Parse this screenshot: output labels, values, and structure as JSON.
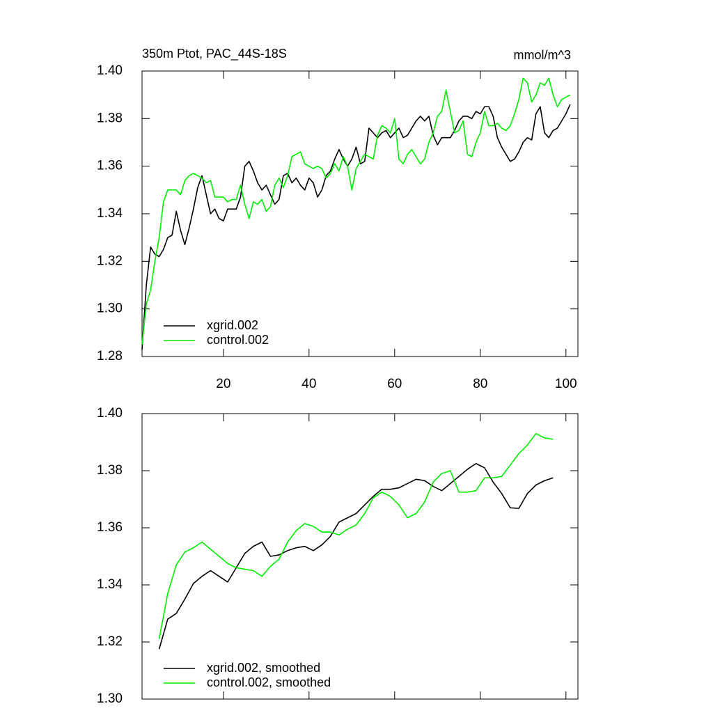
{
  "chart_data": [
    {
      "type": "line",
      "title": "350m Ptot, PAC_44S-18S",
      "units": "mmol/m^3",
      "x": [
        1,
        2,
        3,
        4,
        5,
        6,
        7,
        8,
        9,
        10,
        11,
        12,
        13,
        14,
        15,
        16,
        17,
        18,
        19,
        20,
        21,
        22,
        23,
        24,
        25,
        26,
        27,
        28,
        29,
        30,
        31,
        32,
        33,
        34,
        35,
        36,
        37,
        38,
        39,
        40,
        41,
        42,
        43,
        44,
        45,
        46,
        47,
        48,
        49,
        50,
        51,
        52,
        53,
        54,
        55,
        56,
        57,
        58,
        59,
        60,
        61,
        62,
        63,
        64,
        65,
        66,
        67,
        68,
        69,
        70,
        71,
        72,
        73,
        74,
        75,
        76,
        77,
        78,
        79,
        80,
        81,
        82,
        83,
        84,
        85,
        86,
        87,
        88,
        89,
        90,
        91,
        92,
        93,
        94,
        95,
        96,
        97,
        98,
        99,
        100,
        101
      ],
      "series": [
        {
          "name": "xgrid.002",
          "color": "#000000",
          "values": [
            1.283,
            1.31,
            1.326,
            1.323,
            1.322,
            1.325,
            1.33,
            1.331,
            1.341,
            1.333,
            1.327,
            1.334,
            1.342,
            1.351,
            1.356,
            1.348,
            1.34,
            1.342,
            1.338,
            1.337,
            1.342,
            1.342,
            1.342,
            1.347,
            1.36,
            1.362,
            1.358,
            1.353,
            1.35,
            1.352,
            1.348,
            1.344,
            1.346,
            1.356,
            1.357,
            1.353,
            1.355,
            1.352,
            1.35,
            1.355,
            1.353,
            1.347,
            1.35,
            1.356,
            1.358,
            1.363,
            1.367,
            1.363,
            1.36,
            1.363,
            1.368,
            1.361,
            1.362,
            1.376,
            1.374,
            1.372,
            1.374,
            1.375,
            1.372,
            1.374,
            1.376,
            1.372,
            1.373,
            1.376,
            1.379,
            1.381,
            1.379,
            1.381,
            1.373,
            1.369,
            1.372,
            1.372,
            1.372,
            1.375,
            1.379,
            1.381,
            1.381,
            1.38,
            1.383,
            1.382,
            1.385,
            1.385,
            1.381,
            1.372,
            1.368,
            1.365,
            1.362,
            1.363,
            1.366,
            1.37,
            1.372,
            1.371,
            1.382,
            1.385,
            1.374,
            1.372,
            1.375,
            1.376,
            1.379,
            1.382,
            1.386
          ]
        },
        {
          "name": "control.002",
          "color": "#00ee00",
          "values": [
            1.285,
            1.302,
            1.308,
            1.32,
            1.33,
            1.345,
            1.35,
            1.35,
            1.35,
            1.348,
            1.354,
            1.356,
            1.357,
            1.356,
            1.355,
            1.353,
            1.354,
            1.347,
            1.347,
            1.347,
            1.345,
            1.346,
            1.346,
            1.352,
            1.344,
            1.338,
            1.345,
            1.344,
            1.346,
            1.341,
            1.343,
            1.352,
            1.355,
            1.351,
            1.356,
            1.364,
            1.365,
            1.366,
            1.361,
            1.36,
            1.359,
            1.36,
            1.359,
            1.355,
            1.357,
            1.361,
            1.358,
            1.364,
            1.36,
            1.35,
            1.359,
            1.362,
            1.365,
            1.364,
            1.363,
            1.373,
            1.377,
            1.376,
            1.374,
            1.38,
            1.363,
            1.361,
            1.365,
            1.367,
            1.364,
            1.361,
            1.363,
            1.37,
            1.374,
            1.381,
            1.383,
            1.392,
            1.383,
            1.374,
            1.375,
            1.379,
            1.365,
            1.364,
            1.37,
            1.374,
            1.383,
            1.377,
            1.377,
            1.378,
            1.376,
            1.375,
            1.377,
            1.382,
            1.388,
            1.397,
            1.395,
            1.387,
            1.39,
            1.395,
            1.394,
            1.397,
            1.39,
            1.385,
            1.388,
            1.389,
            1.39
          ]
        }
      ],
      "xlim": [
        1,
        102.8
      ],
      "ylim": [
        1.28,
        1.4
      ],
      "xticks": [
        20,
        40,
        60,
        80,
        100
      ],
      "xtick_labels": true,
      "yticks": [
        1.28,
        {
          "value": 1.3,
          "label": "1.30"
        },
        1.32,
        1.34,
        1.36,
        1.38,
        {
          "value": 1.4,
          "label": "1.40"
        }
      ],
      "legend": "lower left"
    },
    {
      "type": "line",
      "x": [
        5,
        7,
        9,
        11,
        13,
        15,
        17,
        19,
        21,
        23,
        25,
        27,
        29,
        31,
        33,
        35,
        37,
        39,
        41,
        43,
        45,
        47,
        49,
        51,
        53,
        55,
        57,
        59,
        61,
        63,
        65,
        67,
        69,
        71,
        73,
        75,
        77,
        79,
        81,
        83,
        85,
        87,
        89,
        91,
        93,
        95,
        97
      ],
      "series": [
        {
          "name": "xgrid.002, smoothed",
          "color": "#000000",
          "values": [
            1.3175,
            1.328,
            1.33,
            1.335,
            1.3405,
            1.343,
            1.345,
            1.343,
            1.341,
            1.346,
            1.351,
            1.3535,
            1.355,
            1.35,
            1.3505,
            1.352,
            1.353,
            1.3535,
            1.352,
            1.354,
            1.357,
            1.362,
            1.3635,
            1.365,
            1.368,
            1.371,
            1.3735,
            1.3735,
            1.374,
            1.3755,
            1.377,
            1.3765,
            1.3745,
            1.373,
            1.3755,
            1.378,
            1.3805,
            1.3825,
            1.381,
            1.376,
            1.372,
            1.367,
            1.3668,
            1.372,
            1.375,
            1.3765,
            1.3775
          ]
        },
        {
          "name": "control.002, smoothed",
          "color": "#00ee00",
          "values": [
            1.321,
            1.337,
            1.347,
            1.3515,
            1.353,
            1.355,
            1.3525,
            1.35,
            1.3475,
            1.346,
            1.3455,
            1.345,
            1.343,
            1.3465,
            1.349,
            1.355,
            1.359,
            1.3615,
            1.3605,
            1.3585,
            1.3585,
            1.3575,
            1.3595,
            1.361,
            1.365,
            1.3705,
            1.3725,
            1.371,
            1.368,
            1.3635,
            1.365,
            1.369,
            1.376,
            1.379,
            1.38,
            1.3725,
            1.3725,
            1.373,
            1.3775,
            1.3775,
            1.378,
            1.382,
            1.386,
            1.389,
            1.393,
            1.3915,
            1.391
          ]
        }
      ],
      "xlim": [
        1,
        102.8
      ],
      "ylim": [
        1.3,
        1.4
      ],
      "xticks": [
        20,
        40,
        60,
        80,
        100
      ],
      "xtick_labels": false,
      "yticks": [
        {
          "value": 1.3,
          "label": "1.30"
        },
        1.32,
        1.34,
        1.36,
        1.38,
        {
          "value": 1.4,
          "label": "1.40"
        }
      ],
      "legend": "lower left"
    }
  ]
}
